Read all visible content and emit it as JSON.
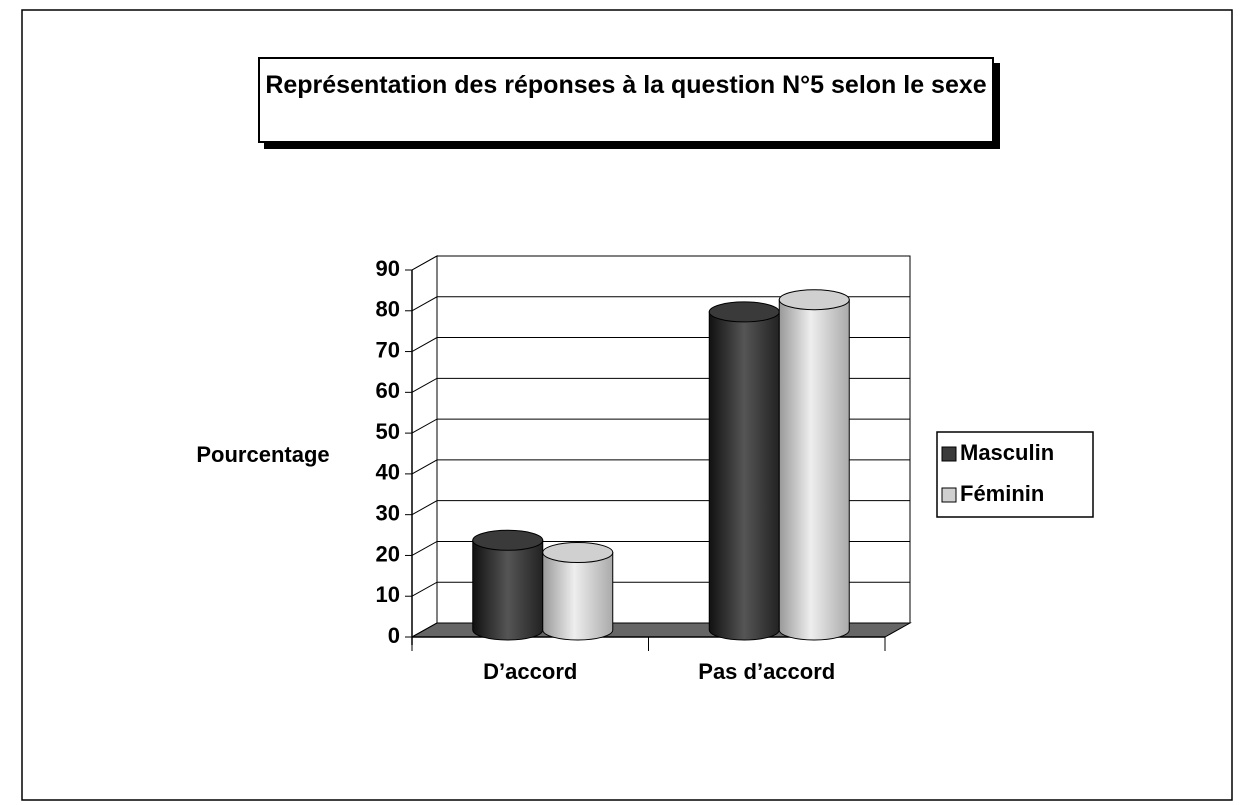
{
  "chart_data": {
    "type": "bar3d",
    "title": "Représentation des réponses à la question N°5 selon le sexe",
    "ylabel": "Pourcentage",
    "categories": [
      "D’accord",
      "Pas d’accord"
    ],
    "series": [
      {
        "name": "Masculin",
        "color": "#3a3a3a",
        "values": [
          22,
          78
        ]
      },
      {
        "name": "Féminin",
        "color": "#d0d0d0",
        "values": [
          19,
          81
        ]
      }
    ],
    "ylim": [
      0,
      90
    ],
    "yticks": [
      0,
      10,
      20,
      30,
      40,
      50,
      60,
      70,
      80,
      90
    ],
    "grid": true,
    "legend": "right"
  }
}
